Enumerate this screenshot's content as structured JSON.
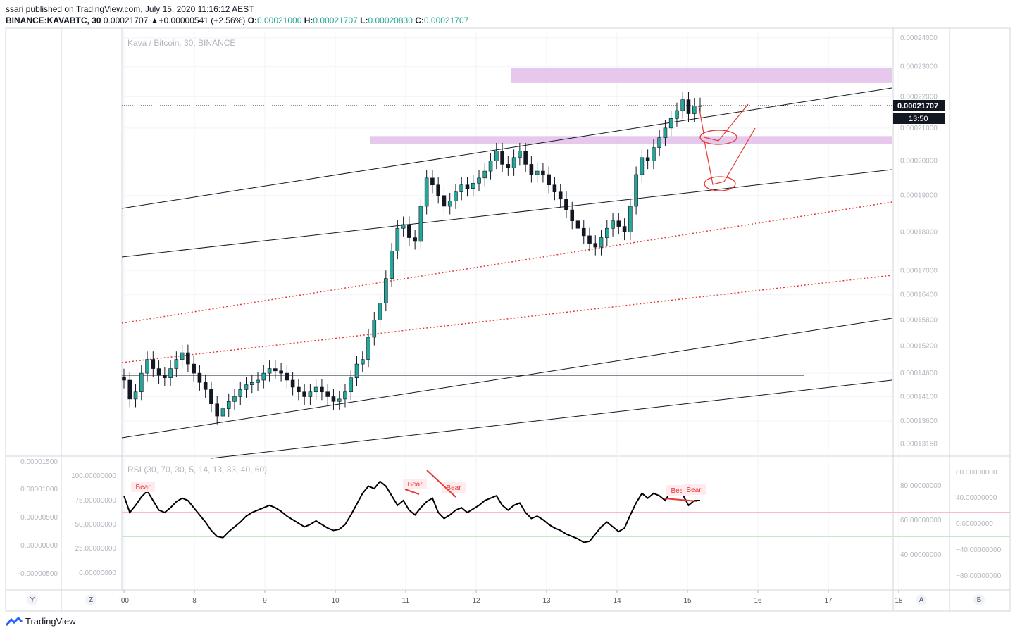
{
  "header": {
    "published": "ssari published on TradingView.com, July 15, 2020 11:16:12 AEST",
    "symbol": "BINANCE:KAVABTC, 30",
    "last_change": "0.00021707 ▲+0.00000541 (+2.56%)",
    "o_label": "O:",
    "o": "0.00021000",
    "h_label": "H:",
    "h": "0.00021707",
    "l_label": "L:",
    "l": "0.00020830",
    "c_label": "C:",
    "c": "0.00021707"
  },
  "chart_data": {
    "type": "candlestick",
    "title": "Kava / Bitcoin, 30, BINANCE",
    "price_axis": {
      "ticks": [
        "0.00024000",
        "0.00023000",
        "0.00022000",
        "0.00021000",
        "0.00020000",
        "0.00019000",
        "0.00018000",
        "0.00017000",
        "0.00016400",
        "0.00015800",
        "0.00015200",
        "0.00014600",
        "0.00014100",
        "0.00013600",
        "0.00013150"
      ],
      "scale": "log",
      "ylim": [
        0.0001295,
        0.0002425
      ],
      "last_price": "0.00021707",
      "countdown": "13:50"
    },
    "time_axis": {
      "ticks": [
        ":00",
        "8",
        "9",
        "10",
        "11",
        "12",
        "13",
        "14",
        "15",
        "16",
        "17",
        "18"
      ]
    },
    "price_series_close": [
      0.0001445,
      0.0001405,
      0.000142,
      0.000146,
      0.000149,
      0.000147,
      0.0001455,
      0.000145,
      0.000147,
      0.000149,
      0.0001505,
      0.000148,
      0.000146,
      0.000144,
      0.0001425,
      0.0001395,
      0.000137,
      0.0001385,
      0.00014,
      0.000141,
      0.0001425,
      0.0001435,
      0.000144,
      0.0001445,
      0.000146,
      0.000147,
      0.0001465,
      0.000146,
      0.0001445,
      0.000143,
      0.000142,
      0.000141,
      0.000142,
      0.000143,
      0.000142,
      0.000141,
      0.00014,
      0.0001405,
      0.000142,
      0.000145,
      0.000148,
      0.000149,
      0.000154,
      0.000158,
      0.000162,
      0.000168,
      0.000175,
      0.000181,
      0.000182,
      0.0001785,
      0.0001775,
      0.000187,
      0.000195,
      0.000193,
      0.00019,
      0.000187,
      0.0001885,
      0.000191,
      0.000193,
      0.000192,
      0.0001935,
      0.000195,
      0.000197,
      0.0002,
      0.000203,
      0.000199,
      0.000198,
      0.000201,
      0.000203,
      0.000199,
      0.000196,
      0.000197,
      0.000196,
      0.000193,
      0.000191,
      0.000189,
      0.000186,
      0.000183,
      0.000181,
      0.000179,
      0.000177,
      0.000176,
      0.0001785,
      0.000181,
      0.000183,
      0.0001815,
      0.00018,
      0.000187,
      0.000196,
      0.000201,
      0.0002,
      0.000204,
      0.000207,
      0.00021,
      0.000213,
      0.0002155,
      0.000219,
      0.0002145,
      0.000217,
      0.00021707
    ],
    "annotations": {
      "resistance_zones": [
        "pink-upper",
        "pink-lower"
      ],
      "rsi_labels": [
        "Bear",
        "Bear",
        "Bear",
        "Bear",
        "Bear"
      ]
    },
    "rsi": {
      "title": "RSI (30, 70, 30, 5, 14, 13, 33, 40, 60)",
      "left_axis": [
        "0.00001500",
        "0.00001000",
        "0.00000500",
        "0.00000000",
        "-0.00000500"
      ],
      "mid_axis": [
        "100.00000000",
        "75.00000000",
        "50.00000000",
        "25.00000000",
        "0.00000000"
      ],
      "right_axis": [
        "80.00000000",
        "60.00000000",
        "40.00000000"
      ],
      "far_right_axis": [
        "80.00000000",
        "40.00000000",
        "0.00000000",
        "−40.00000000",
        "−80.00000000"
      ],
      "upper_band": 60,
      "lower_band": 40,
      "values": [
        74,
        60,
        66,
        73,
        78,
        70,
        62,
        60,
        64,
        69,
        72,
        70,
        64,
        58,
        52,
        45,
        40,
        39,
        44,
        48,
        52,
        57,
        60,
        62,
        64,
        66,
        64,
        61,
        57,
        54,
        51,
        48,
        50,
        53,
        50,
        47,
        45,
        46,
        50,
        58,
        67,
        76,
        82,
        80,
        86,
        82,
        74,
        66,
        70,
        62,
        58,
        64,
        69,
        72,
        60,
        55,
        58,
        62,
        64,
        60,
        63,
        66,
        70,
        72,
        74,
        66,
        62,
        66,
        68,
        60,
        55,
        57,
        54,
        50,
        47,
        45,
        42,
        40,
        38,
        35,
        36,
        42,
        48,
        52,
        48,
        44,
        47,
        58,
        68,
        76,
        72,
        76,
        74,
        70,
        78,
        76,
        75,
        66,
        70,
        70
      ]
    },
    "corner_buttons": [
      "Y",
      "Z",
      "A",
      "B"
    ]
  },
  "colors": {
    "grid": "#f0f3fa",
    "candle": "#26a69a",
    "candle_dark": "#131722",
    "zone": "#e1bee7",
    "red": "#e53935",
    "rsi_upper_band": "#f8bbd0",
    "rsi_lower_band": "#c8e6c9"
  },
  "footer": {
    "brand": "TradingView"
  }
}
